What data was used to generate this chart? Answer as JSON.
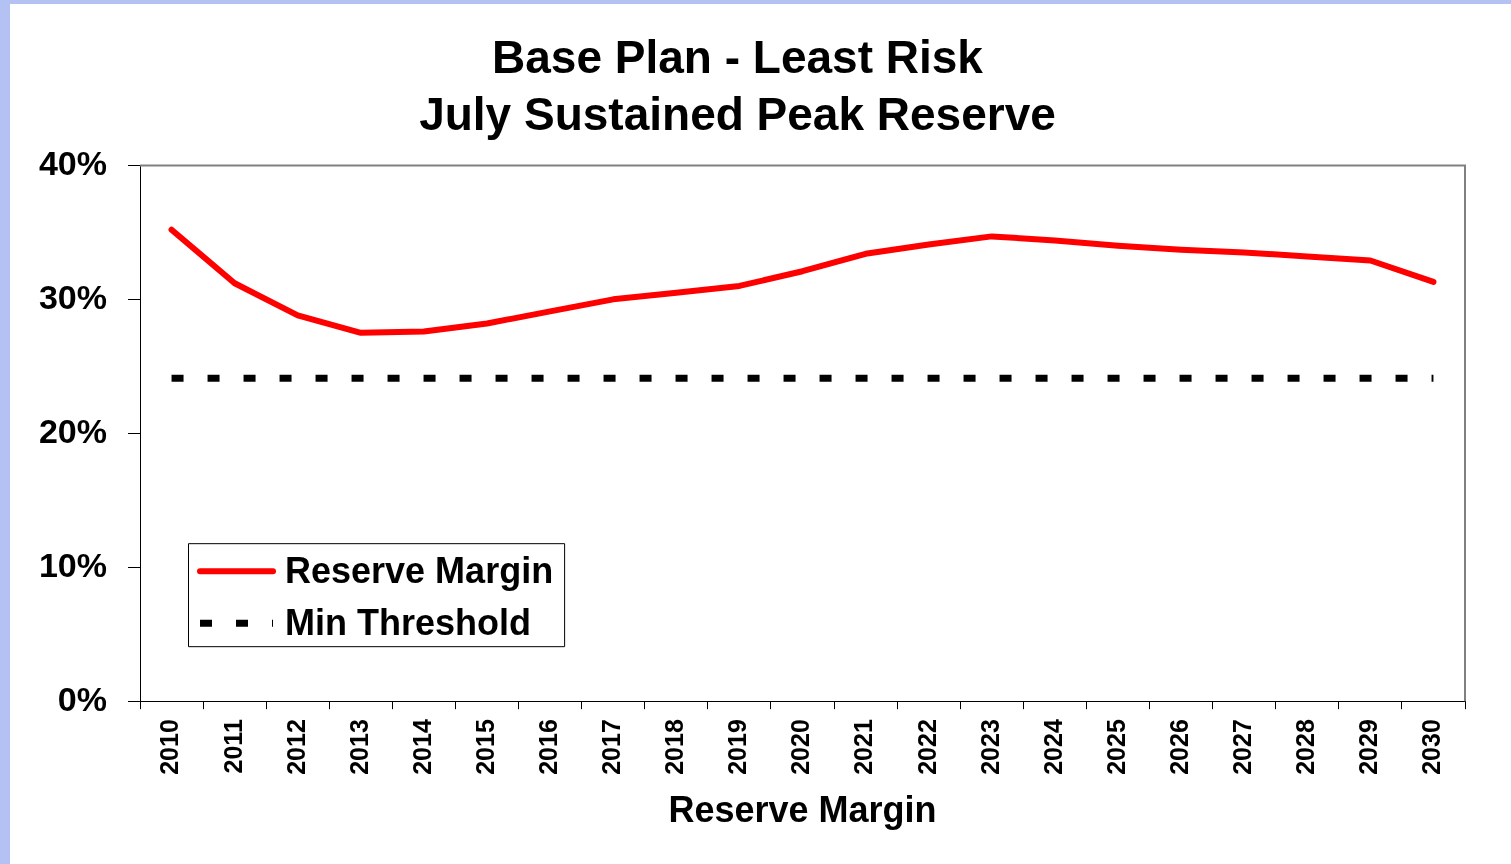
{
  "chart_data": {
    "type": "line",
    "title": "Base Plan - Least Risk",
    "subtitle": "July Sustained Peak Reserve",
    "xlabel": "Reserve Margin",
    "categories": [
      "2010",
      "2011",
      "2012",
      "2013",
      "2014",
      "2015",
      "2016",
      "2017",
      "2018",
      "2019",
      "2020",
      "2021",
      "2022",
      "2023",
      "2024",
      "2025",
      "2026",
      "2027",
      "2028",
      "2029",
      "2030"
    ],
    "series": [
      {
        "name": "Reserve Margin",
        "color": "#ff0000",
        "line_style": "solid",
        "values": [
          35.2,
          31.2,
          28.8,
          27.5,
          27.6,
          28.2,
          29.1,
          30.0,
          30.5,
          31.0,
          32.1,
          33.4,
          34.1,
          34.7,
          34.4,
          34.0,
          33.7,
          33.5,
          33.2,
          32.9,
          31.3
        ]
      },
      {
        "name": "Min Threshold",
        "color": "#000000",
        "line_style": "dashed",
        "values": [
          24.1,
          24.1,
          24.1,
          24.1,
          24.1,
          24.1,
          24.1,
          24.1,
          24.1,
          24.1,
          24.1,
          24.1,
          24.1,
          24.1,
          24.1,
          24.1,
          24.1,
          24.1,
          24.1,
          24.1,
          24.1
        ]
      }
    ],
    "ylim": [
      0,
      40
    ],
    "yticks": [
      {
        "value": 0,
        "label": "0%"
      },
      {
        "value": 10,
        "label": "10%"
      },
      {
        "value": 20,
        "label": "20%"
      },
      {
        "value": 30,
        "label": "30%"
      },
      {
        "value": 40,
        "label": "40%"
      }
    ],
    "grid": false,
    "legend": "bottom left"
  }
}
